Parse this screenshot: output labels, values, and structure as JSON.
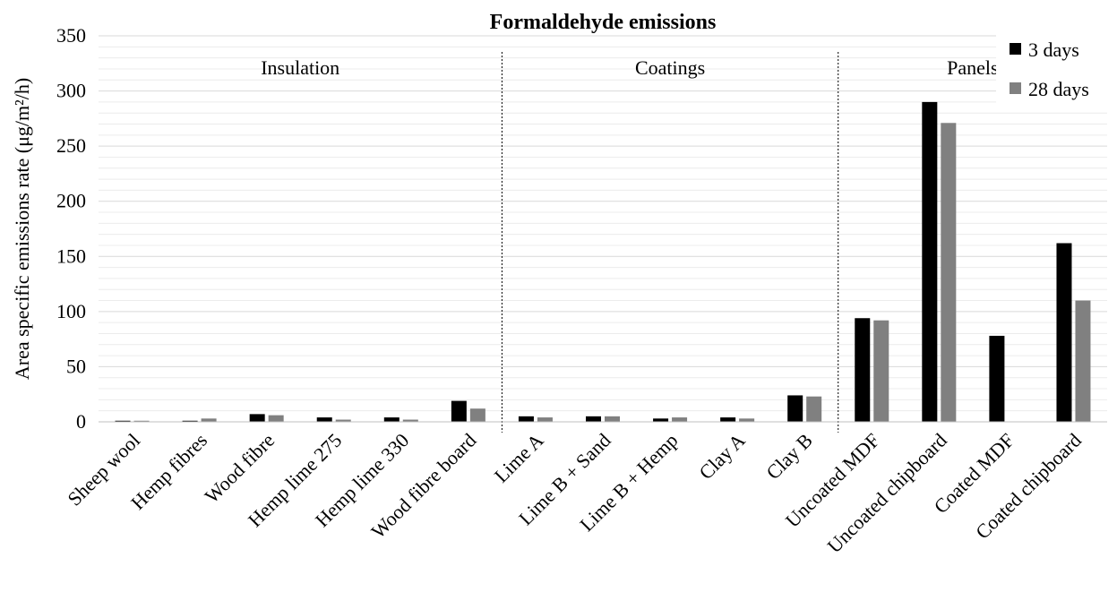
{
  "chart_data": {
    "type": "bar",
    "title": "Formaldehyde emissions",
    "xlabel": "",
    "ylabel": "Area specific emissions rate (μg/m²/h)",
    "ylim": [
      0,
      350
    ],
    "yticks": [
      0,
      50,
      100,
      150,
      200,
      250,
      300,
      350
    ],
    "grid": true,
    "legend_position": "top-right",
    "categories": [
      "Sheep wool",
      "Hemp fibres",
      "Wood fibre",
      "Hemp lime 275",
      "Hemp lime 330",
      "Wood fibre board",
      "Lime A",
      "Lime B + Sand",
      "Lime B + Hemp",
      "Clay A",
      "Clay B",
      "Uncoated MDF",
      "Uncoated chipboard",
      "Coated MDF",
      "Coated chipboard"
    ],
    "series": [
      {
        "name": "3 days",
        "color": "#000000",
        "values": [
          1,
          1,
          7,
          4,
          4,
          19,
          5,
          5,
          3,
          4,
          24,
          94,
          290,
          78,
          162
        ]
      },
      {
        "name": "28 days",
        "color": "#808080",
        "values": [
          1,
          3,
          6,
          2,
          2,
          12,
          4,
          5,
          4,
          3,
          23,
          92,
          271,
          0,
          110
        ]
      }
    ],
    "groups": [
      {
        "label": "Insulation",
        "start": 0,
        "end": 5
      },
      {
        "label": "Coatings",
        "start": 6,
        "end": 10
      },
      {
        "label": "Panels",
        "start": 11,
        "end": 14
      }
    ]
  }
}
